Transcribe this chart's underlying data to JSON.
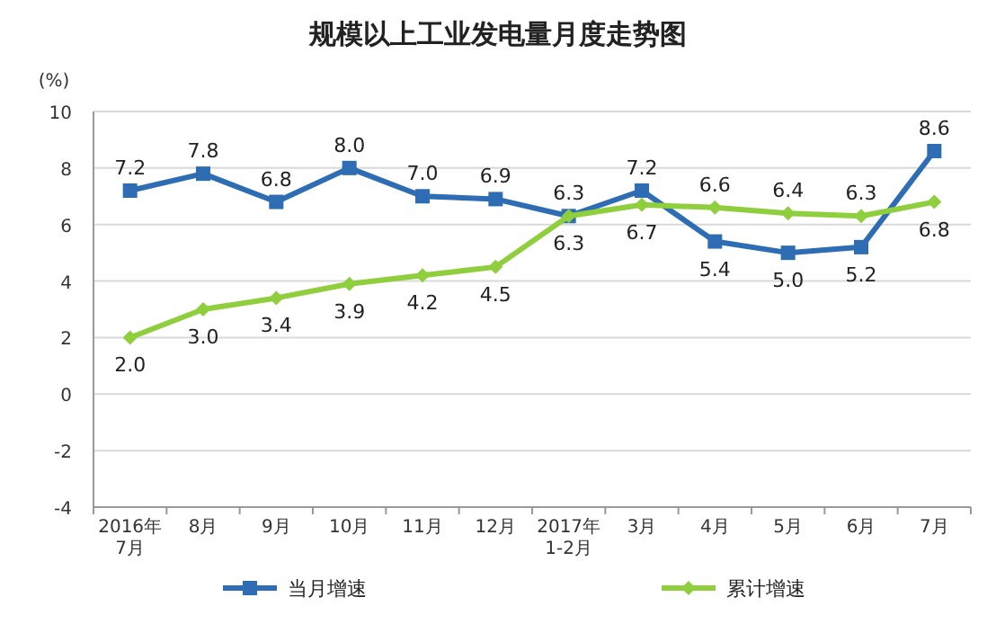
{
  "chart_data": {
    "type": "line",
    "title": "规模以上工业发电量月度走势图",
    "ylabel": "(%)",
    "categories": [
      "2016年\n7月",
      "8月",
      "9月",
      "10月",
      "11月",
      "12月",
      "2017年\n1-2月",
      "3月",
      "4月",
      "5月",
      "6月",
      "7月"
    ],
    "series": [
      {
        "name": "当月增速",
        "color": "#2e6db4",
        "marker": "square",
        "values": [
          7.2,
          7.8,
          6.8,
          8.0,
          7.0,
          6.9,
          6.3,
          7.2,
          5.4,
          5.0,
          5.2,
          8.6
        ],
        "value_labels": [
          "7.2",
          "7.8",
          "6.8",
          "8.0",
          "7.0",
          "6.9",
          "6.3",
          "7.2",
          "5.4",
          "5.0",
          "5.2",
          "8.6"
        ]
      },
      {
        "name": "累计增速",
        "color": "#8fce3c",
        "marker": "diamond",
        "values": [
          2.0,
          3.0,
          3.4,
          3.9,
          4.2,
          4.5,
          6.3,
          6.7,
          6.6,
          6.4,
          6.3,
          6.8
        ],
        "value_labels": [
          "2.0",
          "3.0",
          "3.4",
          "3.9",
          "4.2",
          "4.5",
          "6.3",
          "6.7",
          "6.6",
          "6.4",
          "6.3",
          "6.8"
        ]
      }
    ],
    "ylim": [
      -4,
      10
    ],
    "yticks": [
      -4,
      -2,
      0,
      2,
      4,
      6,
      8,
      10
    ],
    "grid": "y",
    "legend": "bottom",
    "line_style": "solid"
  }
}
